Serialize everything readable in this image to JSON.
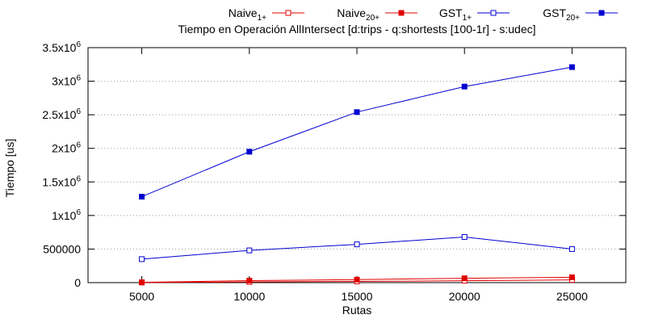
{
  "chart_data": {
    "type": "line",
    "title": "Tiempo en Operación AllIntersect [d:trips - q:shortests [100-1r] - s:udec]",
    "xlabel": "Rutas",
    "ylabel": "Tiempo [us]",
    "x": [
      5000,
      10000,
      15000,
      20000,
      25000
    ],
    "xlim": [
      2500,
      27500
    ],
    "ylim": [
      0,
      3500000
    ],
    "x_ticks": [
      "5000",
      "10000",
      "15000",
      "20000",
      "25000"
    ],
    "y_ticks": [
      {
        "value": 0,
        "base": "0",
        "exp": ""
      },
      {
        "value": 500000,
        "base": "500000",
        "exp": ""
      },
      {
        "value": 1000000,
        "base": "1x10",
        "exp": "6"
      },
      {
        "value": 1500000,
        "base": "1.5x10",
        "exp": "6"
      },
      {
        "value": 2000000,
        "base": "2x10",
        "exp": "6"
      },
      {
        "value": 2500000,
        "base": "2.5x10",
        "exp": "6"
      },
      {
        "value": 3000000,
        "base": "3x10",
        "exp": "6"
      },
      {
        "value": 3500000,
        "base": "3.5x10",
        "exp": "6"
      }
    ],
    "grid": "horizontal dotted",
    "legend_position": "top",
    "series": [
      {
        "name": "Naive",
        "sub": "1+",
        "color": "#e00000",
        "marker": "open-square",
        "values": [
          2000,
          10000,
          18000,
          28000,
          40000
        ]
      },
      {
        "name": "Naive",
        "sub": "20+",
        "color": "#e00000",
        "marker": "filled-square",
        "values": [
          5000,
          30000,
          45000,
          65000,
          80000
        ]
      },
      {
        "name": "GST",
        "sub": "1+",
        "color": "#0000d0",
        "marker": "open-square",
        "values": [
          350000,
          480000,
          570000,
          680000,
          500000
        ]
      },
      {
        "name": "GST",
        "sub": "20+",
        "color": "#0000d0",
        "marker": "filled-square",
        "values": [
          1280000,
          1950000,
          2540000,
          2920000,
          3210000
        ]
      }
    ]
  }
}
